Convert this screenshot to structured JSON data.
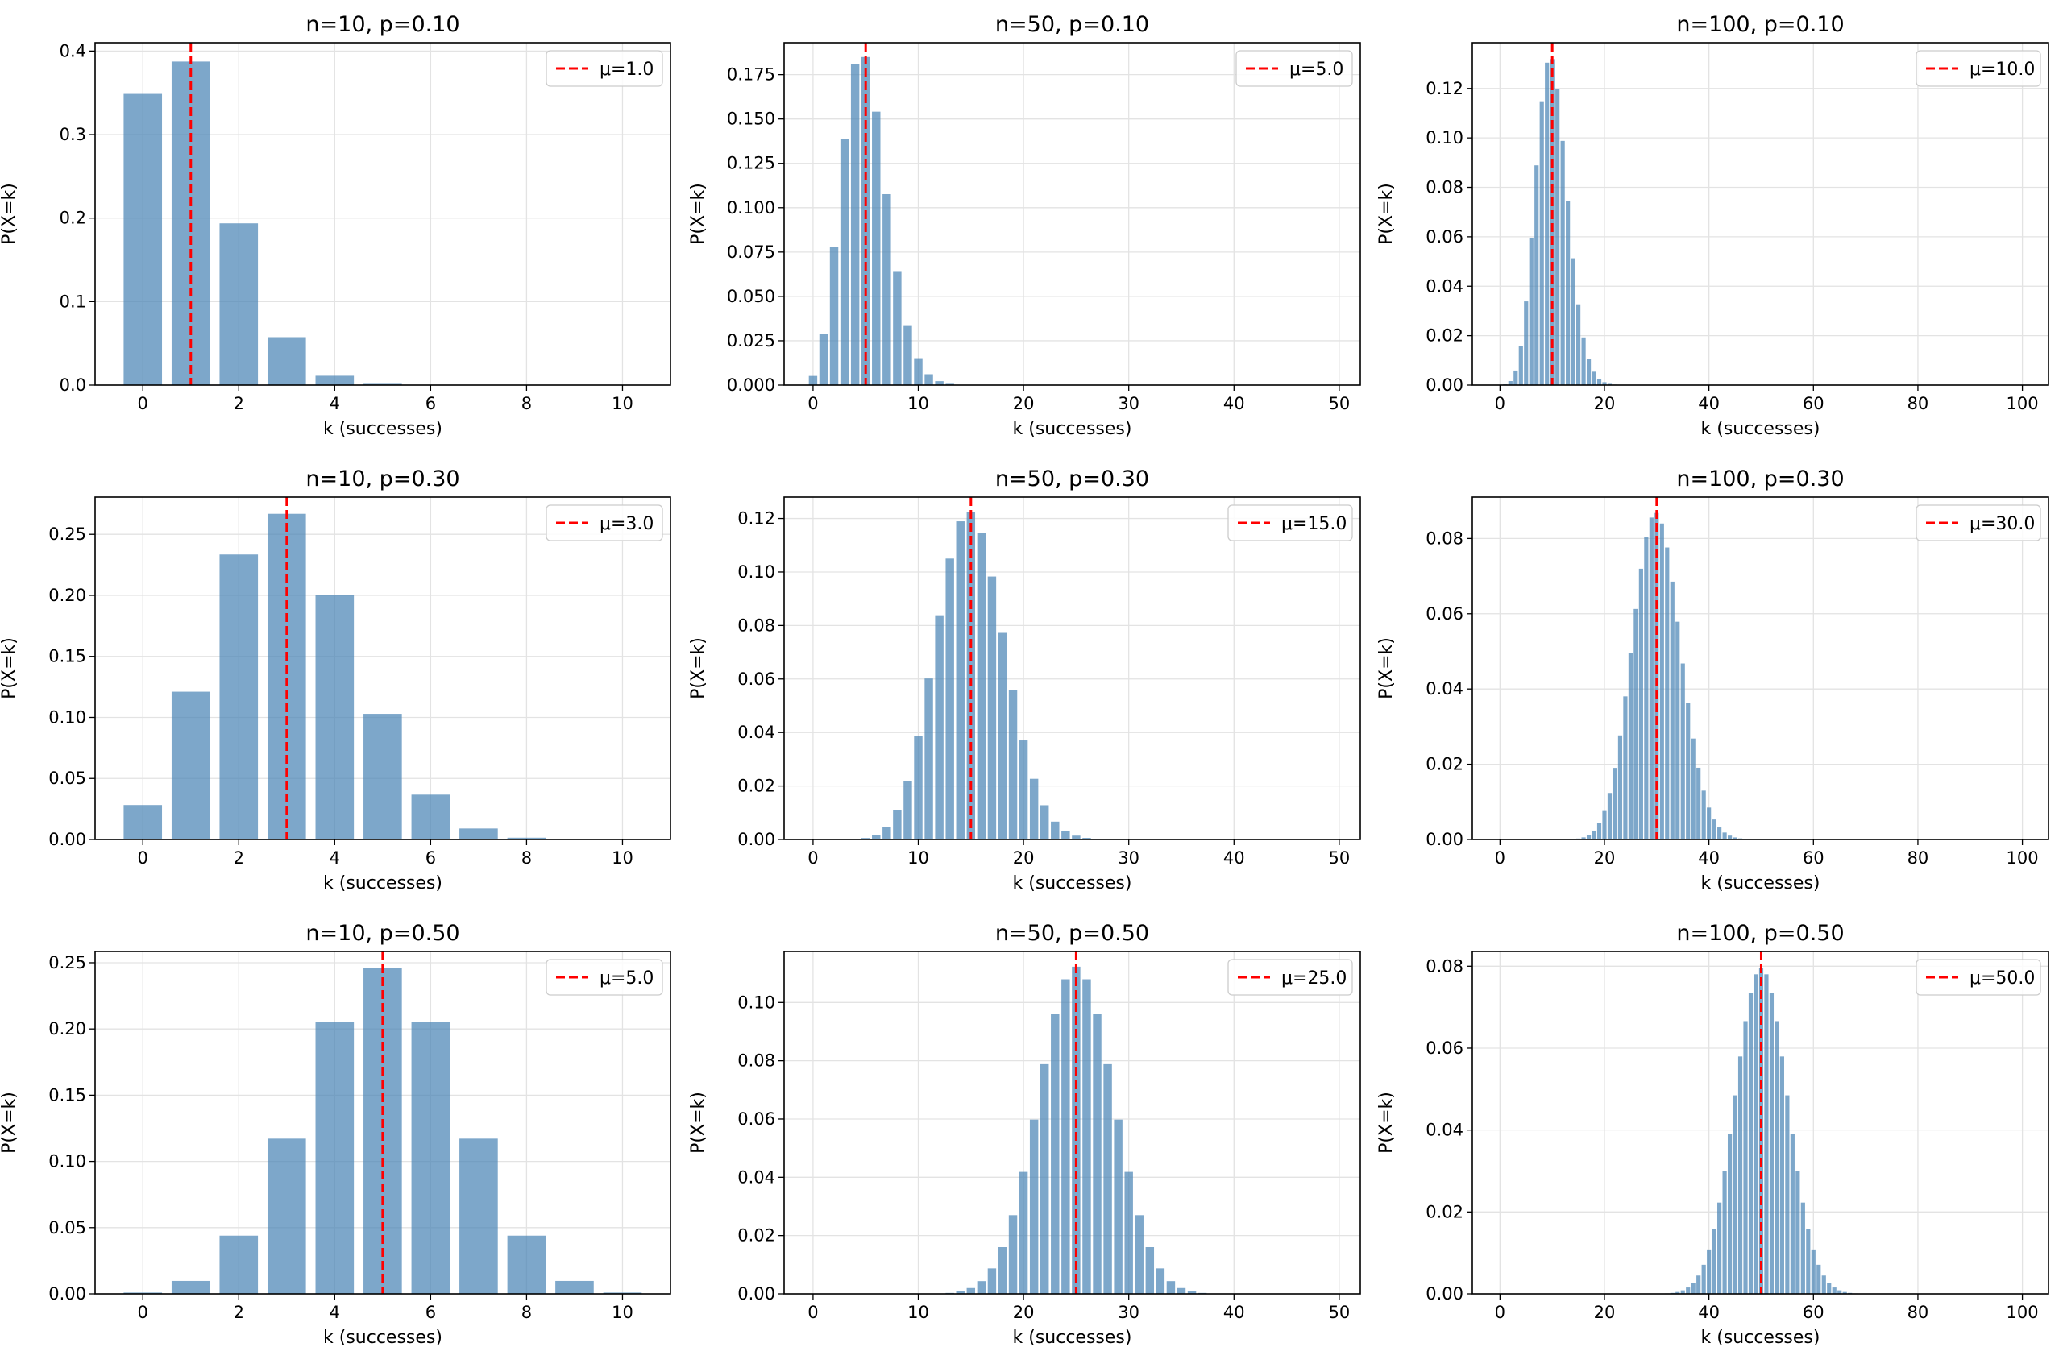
{
  "chart_data": [
    {
      "type": "bar",
      "title": "n=10, p=0.10",
      "n": 10,
      "p": 0.1,
      "xlabel": "k (successes)",
      "ylabel": "P(X=k)",
      "xlim": [
        -0.995,
        11.0
      ],
      "xticks": [
        0,
        2,
        4,
        6,
        8,
        10
      ],
      "ylim": [
        0,
        0.41
      ],
      "yticks": [
        0.0,
        0.1,
        0.2,
        0.3,
        0.4
      ],
      "ytick_labels": [
        "0.0",
        "0.1",
        "0.2",
        "0.3",
        "0.4"
      ],
      "mean_line": {
        "value": 1.0,
        "label": "μ=1.0",
        "color": "#ff0000"
      },
      "legend": "top-right",
      "grid": true,
      "bar_color": "#4682b4"
    },
    {
      "type": "bar",
      "title": "n=50, p=0.10",
      "n": 50,
      "p": 0.1,
      "xlabel": "k (successes)",
      "ylabel": "P(X=k)",
      "xlim": [
        -2.75,
        52.0
      ],
      "xticks": [
        0,
        10,
        20,
        30,
        40,
        50
      ],
      "ylim": [
        0,
        0.193
      ],
      "yticks": [
        0.0,
        0.025,
        0.05,
        0.075,
        0.1,
        0.125,
        0.15,
        0.175
      ],
      "ytick_labels": [
        "0.000",
        "0.025",
        "0.050",
        "0.075",
        "0.100",
        "0.125",
        "0.150",
        "0.175"
      ],
      "mean_line": {
        "value": 5.0,
        "label": "μ=5.0",
        "color": "#ff0000"
      },
      "legend": "top-right",
      "grid": true,
      "bar_color": "#4682b4"
    },
    {
      "type": "bar",
      "title": "n=100, p=0.10",
      "n": 100,
      "p": 0.1,
      "xlabel": "k (successes)",
      "ylabel": "P(X=k)",
      "xlim": [
        -5.3,
        105.0
      ],
      "xticks": [
        0,
        20,
        40,
        60,
        80,
        100
      ],
      "ylim": [
        0,
        0.1385
      ],
      "yticks": [
        0.0,
        0.02,
        0.04,
        0.06,
        0.08,
        0.1,
        0.12
      ],
      "ytick_labels": [
        "0.00",
        "0.02",
        "0.04",
        "0.06",
        "0.08",
        "0.10",
        "0.12"
      ],
      "mean_line": {
        "value": 10.0,
        "label": "μ=10.0",
        "color": "#ff0000"
      },
      "legend": "top-right",
      "grid": true,
      "bar_color": "#4682b4"
    },
    {
      "type": "bar",
      "title": "n=10, p=0.30",
      "n": 10,
      "p": 0.3,
      "xlabel": "k (successes)",
      "ylabel": "P(X=k)",
      "xlim": [
        -0.995,
        11.0
      ],
      "xticks": [
        0,
        2,
        4,
        6,
        8,
        10
      ],
      "ylim": [
        0,
        0.2805
      ],
      "yticks": [
        0.0,
        0.05,
        0.1,
        0.15,
        0.2,
        0.25
      ],
      "ytick_labels": [
        "0.00",
        "0.05",
        "0.10",
        "0.15",
        "0.20",
        "0.25"
      ],
      "mean_line": {
        "value": 3.0,
        "label": "μ=3.0",
        "color": "#ff0000"
      },
      "legend": "top-right",
      "grid": true,
      "bar_color": "#4682b4"
    },
    {
      "type": "bar",
      "title": "n=50, p=0.30",
      "n": 50,
      "p": 0.3,
      "xlabel": "k (successes)",
      "ylabel": "P(X=k)",
      "xlim": [
        -2.75,
        52.0
      ],
      "xticks": [
        0,
        10,
        20,
        30,
        40,
        50
      ],
      "ylim": [
        0,
        0.128
      ],
      "yticks": [
        0.0,
        0.02,
        0.04,
        0.06,
        0.08,
        0.1,
        0.12
      ],
      "ytick_labels": [
        "0.00",
        "0.02",
        "0.04",
        "0.06",
        "0.08",
        "0.10",
        "0.12"
      ],
      "mean_line": {
        "value": 15.0,
        "label": "μ=15.0",
        "color": "#ff0000"
      },
      "legend": "top-right",
      "grid": true,
      "bar_color": "#4682b4"
    },
    {
      "type": "bar",
      "title": "n=100, p=0.30",
      "n": 100,
      "p": 0.3,
      "xlabel": "k (successes)",
      "ylabel": "P(X=k)",
      "xlim": [
        -5.3,
        105.0
      ],
      "xticks": [
        0,
        20,
        40,
        60,
        80,
        100
      ],
      "ylim": [
        0,
        0.091
      ],
      "yticks": [
        0.0,
        0.02,
        0.04,
        0.06,
        0.08
      ],
      "ytick_labels": [
        "0.00",
        "0.02",
        "0.04",
        "0.06",
        "0.08"
      ],
      "mean_line": {
        "value": 30.0,
        "label": "μ=30.0",
        "color": "#ff0000"
      },
      "legend": "top-right",
      "grid": true,
      "bar_color": "#4682b4"
    },
    {
      "type": "bar",
      "title": "n=10, p=0.50",
      "n": 10,
      "p": 0.5,
      "xlabel": "k (successes)",
      "ylabel": "P(X=k)",
      "xlim": [
        -0.995,
        11.0
      ],
      "xticks": [
        0,
        2,
        4,
        6,
        8,
        10
      ],
      "ylim": [
        0,
        0.2585
      ],
      "yticks": [
        0.0,
        0.05,
        0.1,
        0.15,
        0.2,
        0.25
      ],
      "ytick_labels": [
        "0.00",
        "0.05",
        "0.10",
        "0.15",
        "0.20",
        "0.25"
      ],
      "mean_line": {
        "value": 5.0,
        "label": "μ=5.0",
        "color": "#ff0000"
      },
      "legend": "top-right",
      "grid": true,
      "bar_color": "#4682b4"
    },
    {
      "type": "bar",
      "title": "n=50, p=0.50",
      "n": 50,
      "p": 0.5,
      "xlabel": "k (successes)",
      "ylabel": "P(X=k)",
      "xlim": [
        -2.75,
        52.0
      ],
      "xticks": [
        0,
        10,
        20,
        30,
        40,
        50
      ],
      "ylim": [
        0,
        0.1175
      ],
      "yticks": [
        0.0,
        0.02,
        0.04,
        0.06,
        0.08,
        0.1
      ],
      "ytick_labels": [
        "0.00",
        "0.02",
        "0.04",
        "0.06",
        "0.08",
        "0.10"
      ],
      "mean_line": {
        "value": 25.0,
        "label": "μ=25.0",
        "color": "#ff0000"
      },
      "legend": "top-right",
      "grid": true,
      "bar_color": "#4682b4"
    },
    {
      "type": "bar",
      "title": "n=100, p=0.50",
      "n": 100,
      "p": 0.5,
      "xlabel": "k (successes)",
      "ylabel": "P(X=k)",
      "xlim": [
        -5.3,
        105.0
      ],
      "xticks": [
        0,
        20,
        40,
        60,
        80,
        100
      ],
      "ylim": [
        0,
        0.0836
      ],
      "yticks": [
        0.0,
        0.02,
        0.04,
        0.06,
        0.08
      ],
      "ytick_labels": [
        "0.00",
        "0.02",
        "0.04",
        "0.06",
        "0.08"
      ],
      "mean_line": {
        "value": 50.0,
        "label": "μ=50.0",
        "color": "#ff0000"
      },
      "legend": "top-right",
      "grid": true,
      "bar_color": "#4682b4"
    }
  ]
}
